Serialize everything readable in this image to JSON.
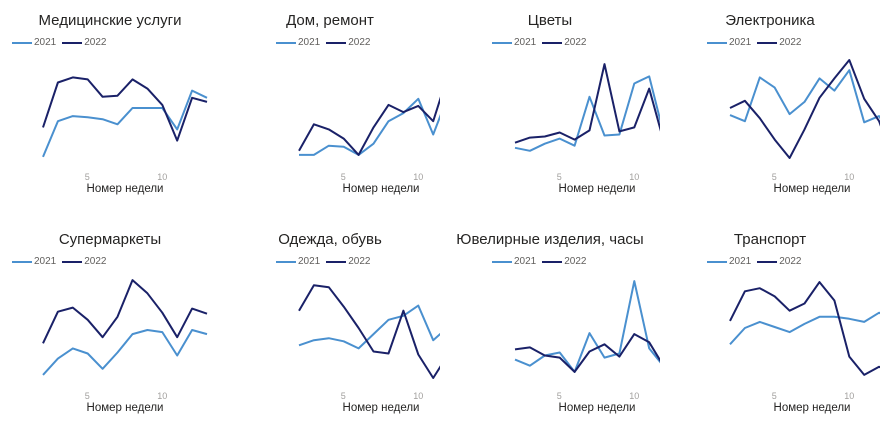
{
  "colors": {
    "y2021": "#4a90cf",
    "y2022": "#1a2168"
  },
  "legend": {
    "y2021": "2021",
    "y2022": "2022"
  },
  "xlabel": "Номер недели",
  "ticks": [
    "5",
    "10"
  ],
  "chart_data": [
    {
      "type": "line",
      "title": "Медицинские услуги",
      "xlabel": "Номер недели",
      "x": [
        2,
        3,
        4,
        5,
        6,
        7,
        8,
        9,
        10,
        11,
        12,
        13
      ],
      "series": [
        {
          "name": "2021",
          "values": [
            3,
            38,
            43,
            42,
            40,
            35,
            51,
            51,
            51,
            30,
            68,
            61
          ]
        },
        {
          "name": "2022",
          "values": [
            32,
            76,
            81,
            79,
            62,
            63,
            79,
            70,
            54,
            19,
            61,
            57
          ]
        }
      ]
    },
    {
      "type": "line",
      "title": "Дом, ремонт",
      "x": [
        2,
        3,
        4,
        5,
        6,
        7,
        8,
        9,
        10,
        11,
        12,
        13
      ],
      "xlabel": "Номер недели",
      "series": [
        {
          "name": "2021",
          "values": [
            5,
            5,
            14,
            13,
            5,
            16,
            38,
            46,
            60,
            25,
            63,
            61
          ]
        },
        {
          "name": "2022",
          "values": [
            9,
            35,
            30,
            21,
            5,
            32,
            54,
            47,
            53,
            38,
            84,
            67
          ]
        }
      ]
    },
    {
      "type": "line",
      "title": "Цветы",
      "x": [
        2,
        3,
        4,
        5,
        6,
        7,
        8,
        9,
        10,
        11,
        12,
        13
      ],
      "xlabel": "Номер недели",
      "series": [
        {
          "name": "2021",
          "values": [
            12,
            9,
            16,
            21,
            14,
            62,
            24,
            25,
            75,
            82,
            24,
            23
          ]
        },
        {
          "name": "2022",
          "values": [
            17,
            22,
            23,
            27,
            20,
            29,
            94,
            28,
            32,
            70,
            17,
            17
          ]
        }
      ]
    },
    {
      "type": "line",
      "title": "Электроника",
      "x": [
        2,
        3,
        4,
        5,
        6,
        7,
        8,
        9,
        10,
        11,
        12,
        13
      ],
      "xlabel": "Номер недели",
      "series": [
        {
          "name": "2021",
          "values": [
            44,
            38,
            81,
            71,
            45,
            57,
            80,
            68,
            88,
            37,
            43,
            20
          ]
        },
        {
          "name": "2022",
          "values": [
            51,
            58,
            41,
            20,
            2,
            30,
            61,
            80,
            98,
            60,
            38,
            -2
          ]
        }
      ]
    },
    {
      "type": "line",
      "title": "Супермаркеты",
      "x": [
        2,
        3,
        4,
        5,
        6,
        7,
        8,
        9,
        10,
        11,
        12,
        13
      ],
      "xlabel": "Номер недели",
      "series": [
        {
          "name": "2021",
          "values": [
            4,
            20,
            30,
            25,
            10,
            26,
            44,
            48,
            46,
            23,
            48,
            44
          ]
        },
        {
          "name": "2022",
          "values": [
            35,
            66,
            70,
            58,
            41,
            61,
            97,
            84,
            65,
            41,
            69,
            64
          ]
        }
      ]
    },
    {
      "type": "line",
      "title": "Одежда, обувь",
      "x": [
        2,
        3,
        4,
        5,
        6,
        7,
        8,
        9,
        10,
        11,
        12,
        13
      ],
      "xlabel": "Номер недели",
      "series": [
        {
          "name": "2021",
          "values": [
            33,
            38,
            40,
            37,
            30,
            44,
            58,
            62,
            72,
            38,
            51,
            55
          ]
        },
        {
          "name": "2022",
          "values": [
            67,
            92,
            90,
            71,
            50,
            27,
            25,
            67,
            24,
            1,
            24,
            15
          ]
        }
      ]
    },
    {
      "type": "line",
      "title": "Ювелирные изделия, часы",
      "x": [
        2,
        3,
        4,
        5,
        6,
        7,
        8,
        9,
        10,
        11,
        12,
        13
      ],
      "xlabel": "Номер недели",
      "series": [
        {
          "name": "2021",
          "values": [
            19,
            13,
            23,
            26,
            7,
            45,
            21,
            25,
            96,
            30,
            12,
            5
          ]
        },
        {
          "name": "2022",
          "values": [
            29,
            31,
            23,
            21,
            7,
            27,
            34,
            22,
            44,
            36,
            12,
            1
          ]
        }
      ]
    },
    {
      "type": "line",
      "title": "Транспорт",
      "x": [
        2,
        3,
        4,
        5,
        6,
        7,
        8,
        9,
        10,
        11,
        12,
        13
      ],
      "xlabel": "Номер недели",
      "series": [
        {
          "name": "2021",
          "values": [
            34,
            50,
            56,
            51,
            46,
            54,
            61,
            61,
            59,
            56,
            65,
            58
          ]
        },
        {
          "name": "2022",
          "values": [
            57,
            86,
            89,
            81,
            67,
            74,
            95,
            77,
            22,
            4,
            12,
            6
          ]
        }
      ]
    }
  ]
}
